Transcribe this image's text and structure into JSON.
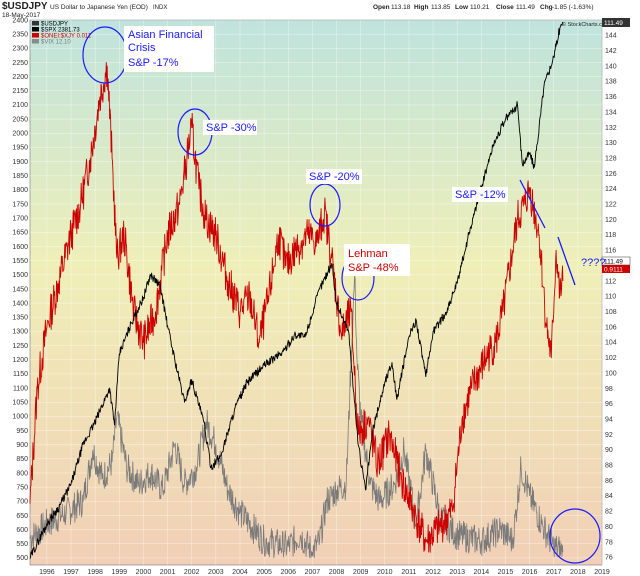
{
  "header": {
    "symbol": "$USDJPY",
    "description": "US Dollar to Japanese Yen (EOD)",
    "exchange": "INDX",
    "date": "18-May-2017",
    "open_label": "Open",
    "open": "113.18",
    "high_label": "High",
    "high": "113.85",
    "low_label": "Low",
    "low": "110.21",
    "close_label": "Close",
    "close": "111.49",
    "chg_label": "Chg",
    "chg": "-1.85 (-1.63%)",
    "watermark": "© StockCharts.com"
  },
  "legend": [
    {
      "label": "$USDJPY",
      "color": "#333333"
    },
    {
      "label": "$SPX 2381.73",
      "color": "#000000"
    },
    {
      "label": "$ONEI:$XJY 0.011",
      "color": "#cc0000"
    },
    {
      "label": "$VIX 12.10",
      "color": "#8a8a8a"
    }
  ],
  "right_badges": {
    "close": "111.49",
    "ratio": "0.9111"
  },
  "colors": {
    "spx": "#000000",
    "ratio": "#cc0000",
    "vix": "#7a7a7a",
    "annotation": "#1a1aff",
    "bg_top": "#bfe3dd",
    "bg_mid": "#efefb8",
    "bg_bottom": "#f1cfb6"
  },
  "annotations": {
    "asian_line1": "Asian Financial",
    "asian_line2": "Crisis",
    "asian_line3": "S&P -17%",
    "sp30": "S&P -30%",
    "sp20": "S&P -20%",
    "lehman_line1": "Lehman",
    "lehman_line2": "S&P -48%",
    "sp12": "S&P -12%",
    "question": "????"
  },
  "chart_data": {
    "type": "line",
    "title": "$USDJPY US Dollar to Japanese Yen (EOD) INDX",
    "xlabel": "",
    "ylabel": "",
    "x_ticks": [
      "1996",
      "1997",
      "1998",
      "1999",
      "2000",
      "2001",
      "2002",
      "2003",
      "2004",
      "2005",
      "2006",
      "2007",
      "2008",
      "2009",
      "2010",
      "2011",
      "2012",
      "2013",
      "2014",
      "2015",
      "2016",
      "2017",
      "2018",
      "2019"
    ],
    "y_left_ticks": [
      500,
      550,
      600,
      650,
      700,
      750,
      800,
      850,
      900,
      950,
      1000,
      1050,
      1100,
      1150,
      1200,
      1250,
      1300,
      1350,
      1400,
      1450,
      1500,
      1550,
      1600,
      1650,
      1700,
      1750,
      1800,
      1850,
      1900,
      1950,
      2000,
      2050,
      2100,
      2150,
      2200,
      2250,
      2300,
      2350,
      2400
    ],
    "y_right_ticks": [
      76,
      78,
      80,
      82,
      84,
      86,
      88,
      90,
      92,
      94,
      96,
      98,
      100,
      102,
      104,
      106,
      108,
      110,
      112,
      114,
      116,
      118,
      120,
      122,
      124,
      126,
      128,
      130,
      132,
      134,
      136,
      138,
      140,
      142,
      144
    ],
    "ylim_left": [
      475,
      2400
    ],
    "ylim_right": [
      75,
      146
    ],
    "xlim": [
      1995.3,
      2019.0
    ],
    "grid": true,
    "series": [
      {
        "name": "$SPX 2381.73",
        "axis": "left",
        "x": [
          1995.3,
          1996.0,
          1996.5,
          1997.0,
          1997.5,
          1998.0,
          1998.6,
          1998.8,
          1999.0,
          1999.5,
          2000.0,
          2000.3,
          2000.7,
          2001.0,
          2001.3,
          2001.7,
          2002.0,
          2002.5,
          2002.8,
          2003.2,
          2003.8,
          2004.3,
          2005.0,
          2005.8,
          2006.3,
          2006.7,
          2007.3,
          2007.8,
          2008.0,
          2008.5,
          2008.9,
          2009.2,
          2009.5,
          2010.0,
          2010.3,
          2010.5,
          2011.0,
          2011.3,
          2011.7,
          2012.0,
          2012.5,
          2013.0,
          2013.5,
          2014.0,
          2014.5,
          2015.0,
          2015.5,
          2015.7,
          2016.0,
          2016.2,
          2016.6,
          2017.0,
          2017.25,
          2017.38
        ],
        "y": [
          500,
          620,
          680,
          760,
          900,
          980,
          1100,
          970,
          1220,
          1330,
          1420,
          1500,
          1460,
          1320,
          1200,
          1050,
          1130,
          980,
          820,
          860,
          1030,
          1120,
          1180,
          1230,
          1290,
          1280,
          1450,
          1540,
          1400,
          1300,
          900,
          740,
          950,
          1120,
          1190,
          1060,
          1280,
          1340,
          1140,
          1300,
          1360,
          1470,
          1650,
          1810,
          1960,
          2050,
          2100,
          1890,
          1930,
          1880,
          2170,
          2270,
          2370,
          2390
        ]
      },
      {
        "name": "$ONEI:$XJY 0.011",
        "axis": "right",
        "x": [
          1995.3,
          1995.6,
          1996.0,
          1996.5,
          1997.0,
          1997.4,
          1997.8,
          1998.2,
          1998.5,
          1998.7,
          1998.9,
          1999.2,
          1999.6,
          2000.0,
          2000.5,
          2001.0,
          2001.5,
          2001.8,
          2002.0,
          2002.3,
          2002.6,
          2003.0,
          2003.5,
          2004.0,
          2004.4,
          2004.8,
          2005.2,
          2005.6,
          2005.9,
          2006.3,
          2006.8,
          2007.2,
          2007.5,
          2007.8,
          2008.2,
          2008.6,
          2008.9,
          2009.3,
          2009.7,
          2010.2,
          2010.7,
          2011.2,
          2011.7,
          2012.3,
          2012.8,
          2013.2,
          2013.6,
          2014.2,
          2014.6,
          2014.9,
          2015.3,
          2015.5,
          2015.8,
          2016.0,
          2016.4,
          2016.7,
          2016.9,
          2017.1,
          2017.25,
          2017.38
        ],
        "y": [
          83,
          98,
          106,
          112,
          118,
          122,
          128,
          136,
          140,
          128,
          115,
          118,
          108,
          104,
          108,
          118,
          122,
          128,
          132,
          124,
          120,
          118,
          112,
          108,
          110,
          104,
          110,
          118,
          114,
          116,
          118,
          117,
          121,
          115,
          105,
          108,
          92,
          94,
          88,
          92,
          86,
          82,
          78,
          80,
          82,
          94,
          98,
          102,
          104,
          108,
          116,
          120,
          122,
          124,
          118,
          106,
          102,
          116,
          110,
          112
        ]
      },
      {
        "name": "$VIX 12.10",
        "axis": "left",
        "x": [
          1995.3,
          1996.0,
          1996.8,
          1997.5,
          1997.9,
          1998.3,
          1998.7,
          1998.9,
          1999.3,
          1999.8,
          2000.3,
          2000.8,
          2001.3,
          2001.7,
          2002.2,
          2002.6,
          2003.0,
          2003.5,
          2004.0,
          2005.0,
          2006.0,
          2006.5,
          2007.0,
          2007.3,
          2007.6,
          2008.0,
          2008.4,
          2008.75,
          2008.85,
          2009.0,
          2009.4,
          2009.8,
          2010.4,
          2010.8,
          2011.3,
          2011.7,
          2012.3,
          2013.0,
          2014.0,
          2014.8,
          2015.3,
          2015.65,
          2016.0,
          2016.5,
          2017.0,
          2017.38
        ],
        "y": [
          570,
          620,
          660,
          700,
          880,
          780,
          840,
          1000,
          820,
          760,
          800,
          740,
          900,
          760,
          820,
          980,
          900,
          740,
          660,
          560,
          540,
          580,
          520,
          560,
          700,
          740,
          760,
          1500,
          1200,
          1000,
          760,
          700,
          760,
          880,
          620,
          880,
          640,
          580,
          560,
          600,
          560,
          820,
          720,
          620,
          540,
          520
        ]
      }
    ]
  }
}
